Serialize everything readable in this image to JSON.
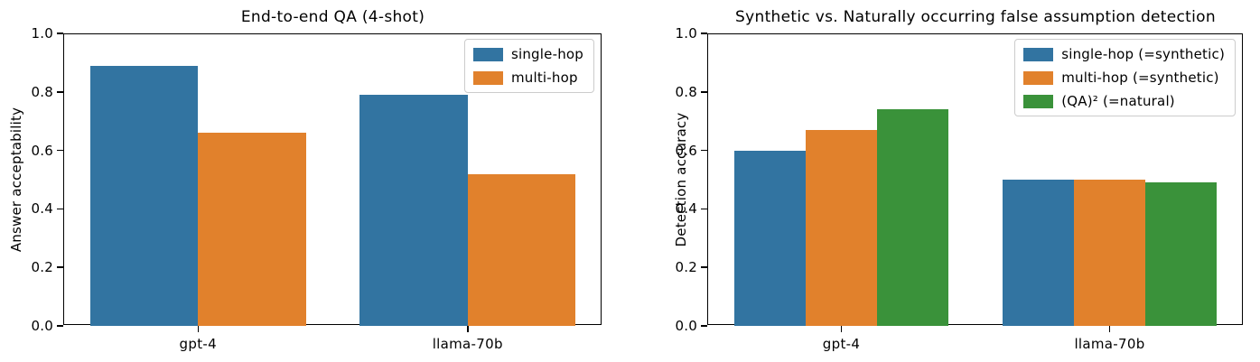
{
  "figure": {
    "background_color": "#ffffff",
    "text_color": "#000000",
    "legend_border_color": "#cccccc"
  },
  "chart_data": [
    {
      "type": "bar",
      "title": "End-to-end QA (4-shot)",
      "ylabel": "Answer acceptability",
      "xlabel": "",
      "categories": [
        "gpt-4",
        "llama-70b"
      ],
      "series": [
        {
          "name": "single-hop",
          "color": "#3274a1",
          "values": [
            0.89,
            0.79
          ]
        },
        {
          "name": "multi-hop",
          "color": "#e1812c",
          "values": [
            0.66,
            0.52
          ]
        }
      ],
      "ylim": [
        0.0,
        1.0
      ],
      "yticks": [
        "0.0",
        "0.2",
        "0.4",
        "0.6",
        "0.8",
        "1.0"
      ],
      "grid": false,
      "legend_position": "upper right"
    },
    {
      "type": "bar",
      "title": "Synthetic vs. Naturally occurring false assumption detection",
      "ylabel": "Detection accuracy",
      "xlabel": "",
      "categories": [
        "gpt-4",
        "llama-70b"
      ],
      "series": [
        {
          "name": "single-hop (=synthetic)",
          "color": "#3274a1",
          "values": [
            0.6,
            0.5
          ]
        },
        {
          "name": "multi-hop (=synthetic)",
          "color": "#e1812c",
          "values": [
            0.67,
            0.5
          ]
        },
        {
          "name": "(QA)² (=natural)",
          "color": "#3a923a",
          "values": [
            0.74,
            0.49
          ]
        }
      ],
      "ylim": [
        0.0,
        1.0
      ],
      "yticks": [
        "0.0",
        "0.2",
        "0.4",
        "0.6",
        "0.8",
        "1.0"
      ],
      "grid": false,
      "legend_position": "upper right"
    }
  ]
}
